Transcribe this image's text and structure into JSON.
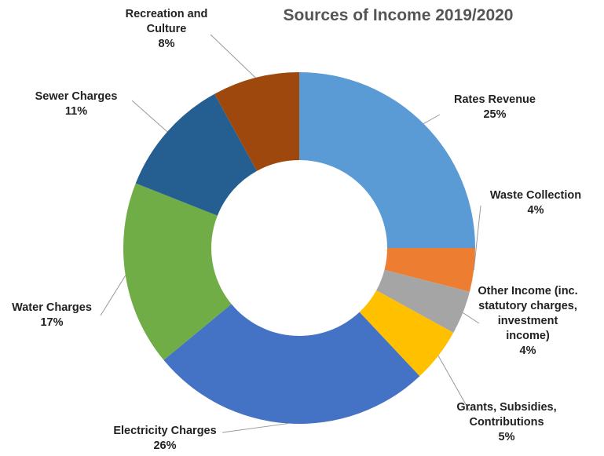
{
  "chart_data": {
    "type": "pie",
    "donut": true,
    "title": "Sources of Income 2019/2020",
    "categories": [
      "Rates Revenue",
      "Waste Collection",
      "Other Income (inc. statutory charges, investment income)",
      "Grants, Subsidies, Contributions",
      "Electricity Charges",
      "Water Charges",
      "Sewer Charges",
      "Recreation and Culture"
    ],
    "values": [
      25,
      4,
      4,
      5,
      26,
      17,
      11,
      8
    ],
    "value_labels": [
      "25%",
      "4%",
      "4%",
      "5%",
      "26%",
      "17%",
      "11%",
      "8%"
    ],
    "label_lines": [
      [
        "Rates Revenue"
      ],
      [
        "Waste Collection"
      ],
      [
        "Other Income (inc.",
        "statutory charges,",
        "investment",
        "income)"
      ],
      [
        "Grants, Subsidies,",
        "Contributions"
      ],
      [
        "Electricity Charges"
      ],
      [
        "Water Charges"
      ],
      [
        "Sewer Charges"
      ],
      [
        "Recreation and",
        "Culture"
      ]
    ],
    "colors": [
      "#5B9BD5",
      "#ED7D31",
      "#A5A5A5",
      "#FFC000",
      "#4472C4",
      "#70AD47",
      "#255E91",
      "#9E480E"
    ],
    "legend": "none",
    "start_angle": "12 o'clock",
    "direction": "clockwise"
  }
}
